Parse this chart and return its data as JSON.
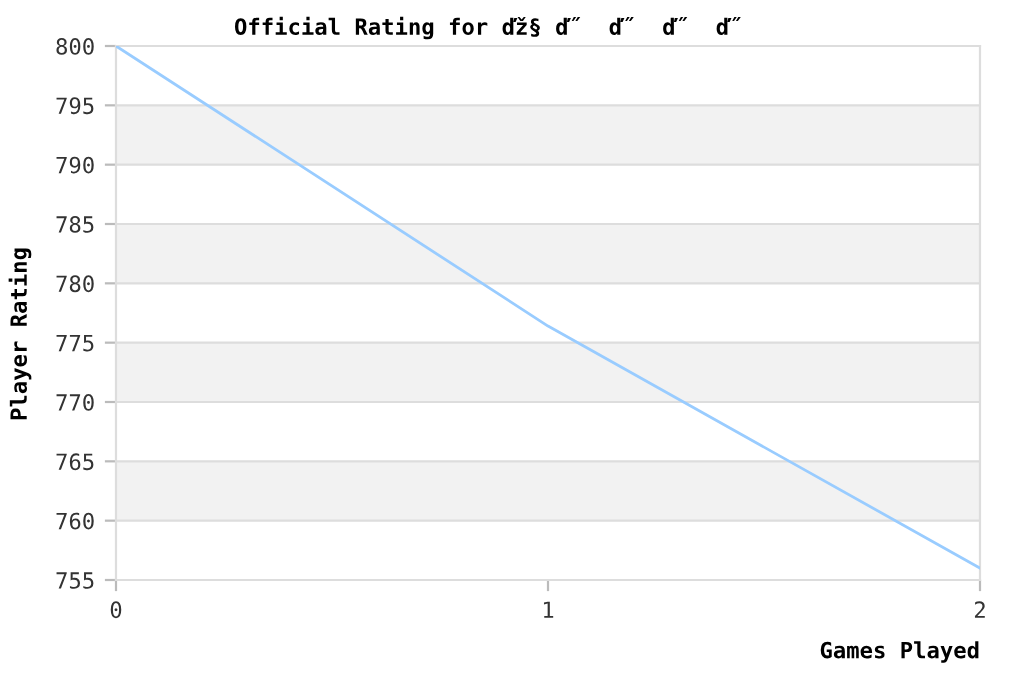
{
  "chart_data": {
    "type": "line",
    "title": "Official Rating for ďž§ ď˝  ď˝  ď˝  ď˝",
    "xlabel": "Games Played",
    "ylabel": "Player Rating",
    "x": [
      0,
      1,
      2
    ],
    "series": [
      {
        "color": "#99ccff",
        "values": [
          800,
          776.4,
          756
        ]
      }
    ],
    "xlim": [
      0,
      2
    ],
    "xticks": [
      0,
      1,
      2
    ],
    "ylim": [
      755,
      800
    ],
    "yticks": [
      755,
      760,
      765,
      770,
      775,
      780,
      785,
      790,
      795,
      800
    ],
    "bands": [
      {
        "axis": "y",
        "from": 790,
        "to": 795,
        "color": "#f2f2f2"
      },
      {
        "axis": "y",
        "from": 780,
        "to": 785,
        "color": "#f2f2f2"
      },
      {
        "axis": "y",
        "from": 770,
        "to": 775,
        "color": "#f2f2f2"
      },
      {
        "axis": "y",
        "from": 760,
        "to": 765,
        "color": "#f2f2f2"
      }
    ],
    "grid": "y",
    "legend": false,
    "marker": "none",
    "line_style": "solid"
  }
}
